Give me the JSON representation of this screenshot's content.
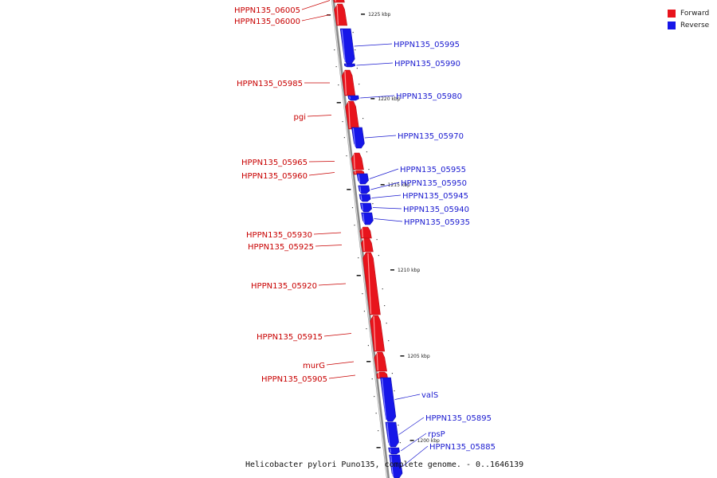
{
  "colors": {
    "forward": "#e8141c",
    "reverse": "#1616e8",
    "axis": "#999999"
  },
  "legend": {
    "forward_label": "Forward",
    "reverse_label": "Reverse"
  },
  "caption": "Helicobacter pylori Puno135, complete genome. - 0..1646139",
  "ticks": [
    "1225 kbp",
    "1220 kbp",
    "1215 kbp",
    "1210 kbp",
    "1205 kbp",
    "1200 kbp"
  ],
  "genes_forward": [
    "HPPN135_06005",
    "HPPN135_06000",
    "HPPN135_05985",
    "pgi",
    "HPPN135_05965",
    "HPPN135_05960",
    "HPPN135_05930",
    "HPPN135_05925",
    "HPPN135_05920",
    "HPPN135_05915",
    "murG",
    "HPPN135_05905"
  ],
  "genes_reverse": [
    "HPPN135_05995",
    "HPPN135_05990",
    "HPPN135_05980",
    "HPPN135_05970",
    "HPPN135_05955",
    "HPPN135_05950",
    "HPPN135_05945",
    "HPPN135_05940",
    "HPPN135_05935",
    "valS",
    "HPPN135_05895",
    "rpsP",
    "HPPN135_05885"
  ]
}
